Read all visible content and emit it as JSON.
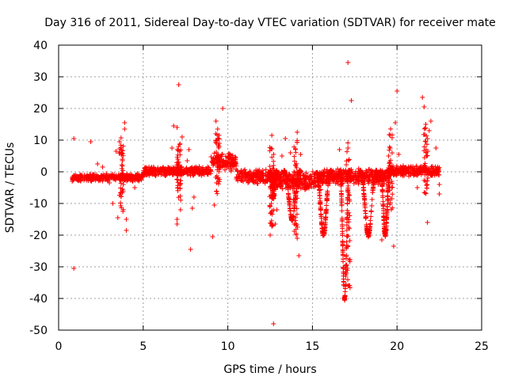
{
  "chart_data": {
    "type": "scatter",
    "title": "Day 316 of 2011, Sidereal Day-to-day VTEC variation (SDTVAR) for receiver mate",
    "xlabel": "GPS time / hours",
    "ylabel": "SDTVAR / TECUs",
    "xlim": [
      0,
      25
    ],
    "ylim": [
      -50,
      40
    ],
    "xticks": [
      0,
      5,
      10,
      15,
      20,
      25
    ],
    "yticks": [
      -50,
      -40,
      -30,
      -20,
      -10,
      0,
      10,
      20,
      30,
      40
    ],
    "xtick_labels": [
      "0",
      "5",
      "10",
      "15",
      "20",
      "25"
    ],
    "ytick_labels": [
      "-50",
      "-40",
      "-30",
      "-20",
      "-10",
      "0",
      "10",
      "20",
      "30",
      "40"
    ],
    "grid": true,
    "marker": "+",
    "color": "#ff0000",
    "series": [
      {
        "name": "SDTVAR",
        "points": [
          [
            0.9,
            10.5
          ],
          [
            0.9,
            -30.5
          ],
          [
            1.9,
            9.5
          ],
          [
            2.3,
            2.5
          ],
          [
            2.6,
            1.5
          ],
          [
            3.0,
            -3.5
          ],
          [
            3.2,
            -10
          ],
          [
            3.4,
            6.5
          ],
          [
            3.5,
            -14.5
          ],
          [
            3.6,
            9.5
          ],
          [
            3.7,
            -6.5
          ],
          [
            3.8,
            -12.5
          ],
          [
            3.9,
            13.5
          ],
          [
            3.9,
            15.5
          ],
          [
            4.0,
            -18.5
          ],
          [
            4.0,
            -15
          ],
          [
            4.5,
            -5
          ],
          [
            6.7,
            7.5
          ],
          [
            6.8,
            14.5
          ],
          [
            7.0,
            14
          ],
          [
            7.1,
            27.5
          ],
          [
            7.2,
            -12
          ],
          [
            7.3,
            11
          ],
          [
            7.0,
            -16.5
          ],
          [
            7.0,
            -15
          ],
          [
            7.6,
            3.5
          ],
          [
            7.7,
            7
          ],
          [
            7.8,
            -24.5
          ],
          [
            7.9,
            -11.5
          ],
          [
            8.0,
            -8
          ],
          [
            9.1,
            -20.5
          ],
          [
            9.2,
            -10.5
          ],
          [
            9.3,
            16
          ],
          [
            9.4,
            13.5
          ],
          [
            9.5,
            9
          ],
          [
            9.7,
            20
          ],
          [
            12.6,
            11.5
          ],
          [
            12.7,
            -48
          ],
          [
            12.8,
            -16.5
          ],
          [
            12.5,
            -20
          ],
          [
            12.9,
            -12
          ],
          [
            13.2,
            5
          ],
          [
            13.4,
            10.5
          ],
          [
            13.7,
            6
          ],
          [
            14.1,
            12.5
          ],
          [
            14.2,
            -26.5
          ],
          [
            14.1,
            -21
          ],
          [
            14.3,
            5.5
          ],
          [
            16.6,
            7
          ],
          [
            17.1,
            34.5
          ],
          [
            17.1,
            7.5
          ],
          [
            17.3,
            22.5
          ],
          [
            17.0,
            -32
          ],
          [
            17.1,
            -36
          ],
          [
            18.9,
            -4
          ],
          [
            19.1,
            -21.5
          ],
          [
            19.5,
            5
          ],
          [
            19.8,
            -23.5
          ],
          [
            19.9,
            15.5
          ],
          [
            20.0,
            25.5
          ],
          [
            20.1,
            5.5
          ],
          [
            21.2,
            -5
          ],
          [
            21.5,
            23.5
          ],
          [
            21.6,
            20.5
          ],
          [
            21.7,
            15
          ],
          [
            21.8,
            -16
          ],
          [
            21.9,
            13
          ],
          [
            22.0,
            16
          ],
          [
            22.3,
            7.5
          ],
          [
            22.5,
            -4
          ],
          [
            22.5,
            -7
          ]
        ],
        "bands": [
          {
            "x": [
              0.8,
              5.0
            ],
            "center": -1.8,
            "spread": 1.3
          },
          {
            "x": [
              5.0,
              9.0
            ],
            "center": 0.2,
            "spread": 1.6
          },
          {
            "x": [
              9.0,
              10.5
            ],
            "center": 3.0,
            "spread": 3.0
          },
          {
            "x": [
              10.5,
              12.5
            ],
            "center": -1.5,
            "spread": 2.5
          },
          {
            "x": [
              12.5,
              15.5
            ],
            "center": -2.8,
            "spread": 3.2
          },
          {
            "x": [
              15.5,
              19.5
            ],
            "center": -1.5,
            "spread": 2.8
          },
          {
            "x": [
              19.5,
              22.5
            ],
            "center": 0.2,
            "spread": 1.8
          }
        ],
        "dips": [
          {
            "x": [
              12.5,
              12.9
            ],
            "min": -8
          },
          {
            "x": [
              13.3,
              14.3
            ],
            "min": -15
          },
          {
            "x": [
              15.2,
              16.1
            ],
            "min": -20
          },
          {
            "x": [
              16.6,
              17.2
            ],
            "min": -40
          },
          {
            "x": [
              17.8,
              18.8
            ],
            "min": -20
          },
          {
            "x": [
              19.0,
              19.6
            ],
            "min": -20
          }
        ],
        "spikes": [
          {
            "x": 3.7,
            "min": -12,
            "max": 12
          },
          {
            "x": 7.1,
            "min": -9,
            "max": 9
          },
          {
            "x": 9.4,
            "min": -8,
            "max": 12
          },
          {
            "x": 12.6,
            "min": -18,
            "max": 8
          },
          {
            "x": 14.0,
            "min": -20,
            "max": 10
          },
          {
            "x": 17.1,
            "min": -38,
            "max": 10
          },
          {
            "x": 19.6,
            "min": -12,
            "max": 14
          },
          {
            "x": 21.7,
            "min": -8,
            "max": 14
          }
        ]
      }
    ]
  }
}
